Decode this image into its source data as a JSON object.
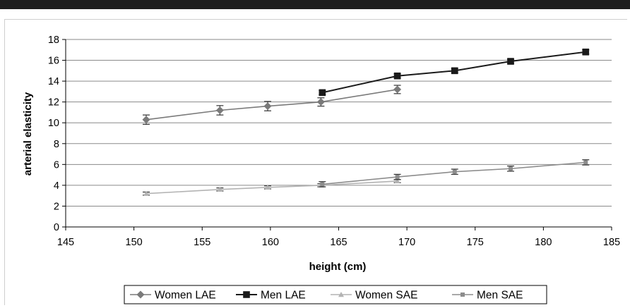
{
  "chart_data": {
    "type": "line",
    "title": "",
    "xlabel": "height (cm)",
    "ylabel": "arterial elasticity",
    "xlim": [
      145,
      185
    ],
    "ylim": [
      0,
      18
    ],
    "xticks": [
      "145",
      "150",
      "155",
      "160",
      "165",
      "170",
      "175",
      "180",
      "185"
    ],
    "yticks": [
      "0",
      "2",
      "4",
      "6",
      "8",
      "10",
      "12",
      "14",
      "16",
      "18"
    ],
    "grid": "horizontal",
    "legend_position": "bottom",
    "series": [
      {
        "name": "Women LAE",
        "marker": "diamond",
        "color": "#7a7a7a",
        "points": [
          [
            150.9,
            10.3
          ],
          [
            156.3,
            11.2
          ],
          [
            159.8,
            11.6
          ],
          [
            163.7,
            12.0
          ],
          [
            169.3,
            13.2
          ]
        ],
        "err": [
          0.45,
          0.45,
          0.45,
          0.4,
          0.4
        ]
      },
      {
        "name": "Men LAE",
        "marker": "square",
        "color": "#1a1a1a",
        "points": [
          [
            163.8,
            12.9
          ],
          [
            169.3,
            14.5
          ],
          [
            173.5,
            15.0
          ],
          [
            177.6,
            15.9
          ],
          [
            183.1,
            16.8
          ]
        ],
        "err": [
          0.2,
          0.2,
          0.2,
          0.2,
          0.2
        ]
      },
      {
        "name": "Women SAE",
        "marker": "triangle",
        "color": "#b3b3b3",
        "points": [
          [
            150.9,
            3.2
          ],
          [
            156.3,
            3.6
          ],
          [
            159.8,
            3.8
          ],
          [
            163.7,
            4.0
          ],
          [
            169.3,
            4.4
          ]
        ],
        "err": [
          0.15,
          0.15,
          0.15,
          0.15,
          0.15
        ]
      },
      {
        "name": "Men SAE",
        "marker": "square-small",
        "color": "#8c8c8c",
        "points": [
          [
            163.8,
            4.1
          ],
          [
            169.3,
            4.8
          ],
          [
            173.5,
            5.3
          ],
          [
            177.6,
            5.6
          ],
          [
            183.1,
            6.2
          ]
        ],
        "err": [
          0.25,
          0.25,
          0.25,
          0.25,
          0.25
        ]
      }
    ]
  }
}
